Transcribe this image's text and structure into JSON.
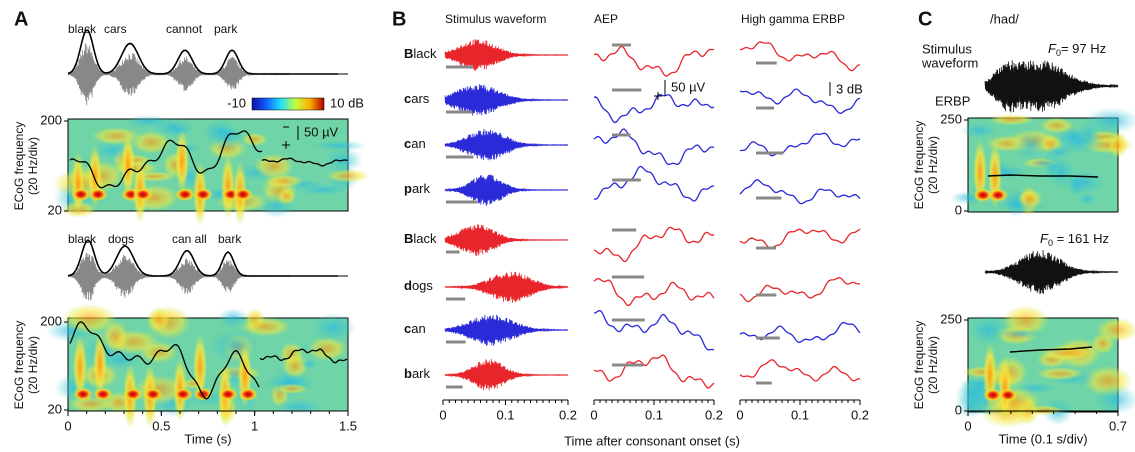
{
  "panel_a": {
    "label": "A",
    "words_top": [
      "black",
      "cars",
      "cannot",
      "park"
    ],
    "words_bottom": [
      "black",
      "dogs",
      "can all",
      "bark"
    ],
    "colorbar_ticks": [
      -10,
      {
        "value": 10,
        "label": "10 dB"
      }
    ],
    "scale_bar": "50 µV",
    "y_label": [
      "ECoG frequency",
      "(20 Hz/div)"
    ],
    "yticks": [
      20,
      200
    ],
    "xticks": [
      0,
      0.5,
      1,
      1.5
    ],
    "x_label": "Time (s)"
  },
  "panel_b": {
    "label": "B",
    "headers": [
      "Stimulus waveform",
      "AEP",
      "High gamma ERBP"
    ],
    "rows": [
      {
        "initial": "B",
        "rest": "lack",
        "color": "#e8252a"
      },
      {
        "initial": "c",
        "rest": "ars",
        "color": "#2a2ad8"
      },
      {
        "initial": "c",
        "rest": "an",
        "color": "#2a2ad8"
      },
      {
        "initial": "p",
        "rest": "ark",
        "color": "#2a2ad8"
      },
      {
        "initial": "B",
        "rest": "lack",
        "color": "#e8252a"
      },
      {
        "initial": "d",
        "rest": "ogs",
        "color": "#e8252a"
      },
      {
        "initial": "c",
        "rest": "an",
        "color": "#2a2ad8"
      },
      {
        "initial": "b",
        "rest": "ark",
        "color": "#e8252a"
      }
    ],
    "aep_scale": "50 µV",
    "erbp_scale": "3 dB",
    "xticks": [
      0,
      0.1,
      0.2
    ],
    "x_label": "Time after consonant onset (s)"
  },
  "panel_c": {
    "label": "C",
    "title": "/had/",
    "stimulus_label": [
      "Stimulus",
      "waveform"
    ],
    "f0_top": {
      "symbol": "F",
      "sub": "0",
      "text": "= 97 Hz"
    },
    "erbp_label": "ERBP",
    "f0_bottom": {
      "symbol": "F",
      "sub": "0",
      "text": " = 161 Hz"
    },
    "y_label": [
      "ECoG frequency",
      "(20 Hz/div)"
    ],
    "yticks": [
      0,
      250
    ],
    "xticks": [
      0,
      0.7
    ],
    "x_label": "Time (0.1 s/div)"
  }
}
